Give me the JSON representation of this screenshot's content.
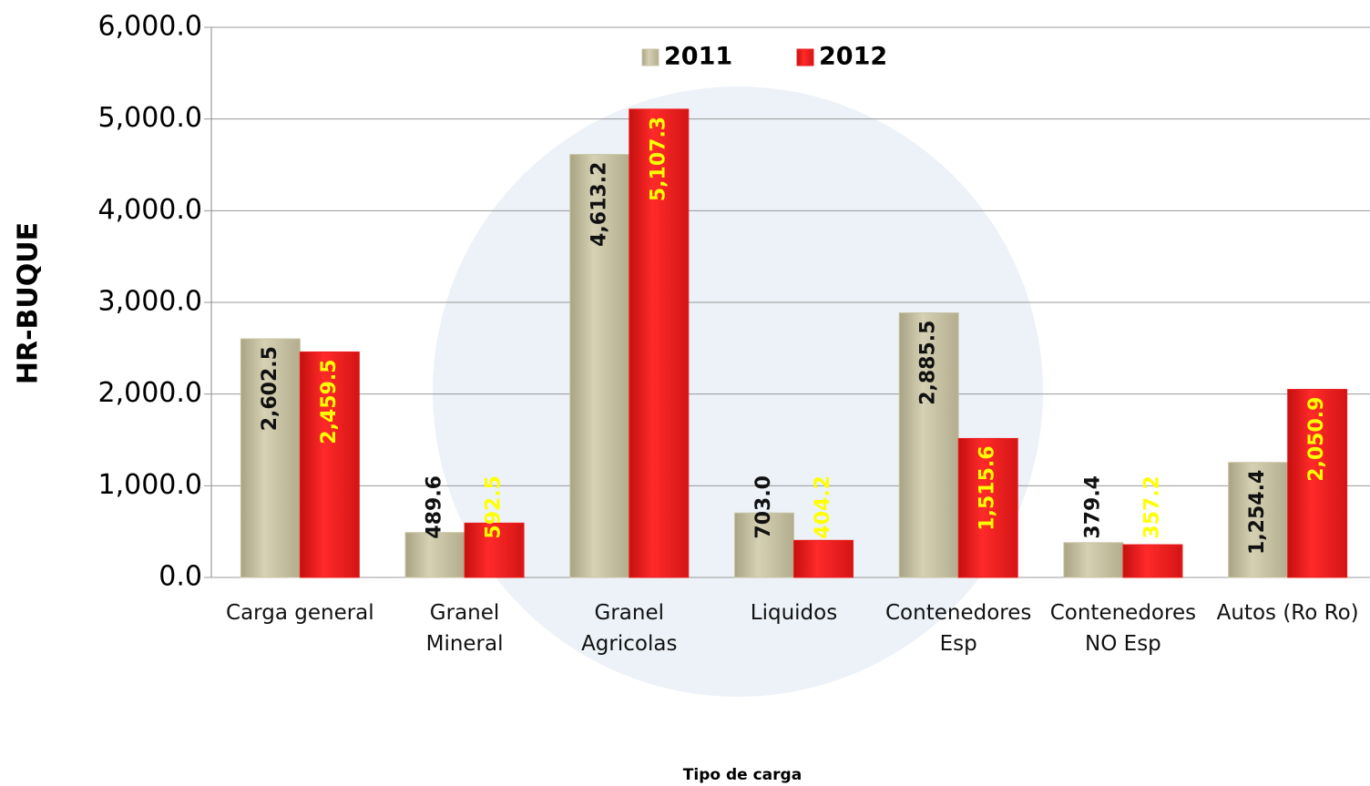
{
  "chart_data": {
    "type": "bar",
    "y_label": "HR-BUQUE",
    "x_label": "Tipo de carga",
    "categories": [
      "Carga general",
      "Granel\nMineral",
      "Granel\nAgricolas",
      "Liquidos",
      "Contenedores\nEsp",
      "Contenedores\nNO Esp",
      "Autos (Ro Ro)"
    ],
    "series": [
      {
        "name": "2011",
        "color": "#c9c4a4",
        "label_color": "#111111",
        "values": [
          2602.5,
          489.6,
          4613.2,
          703.0,
          2885.5,
          379.4,
          1254.4
        ],
        "value_labels": [
          "2,602.5",
          "489.6",
          "4,613.2",
          "703.0",
          "2,885.5",
          "379.4",
          "1,254.4"
        ]
      },
      {
        "name": "2012",
        "color": "#ee1c1c",
        "label_color": "#ffff00",
        "values": [
          2459.5,
          592.5,
          5107.3,
          404.2,
          1515.6,
          357.2,
          2050.9
        ],
        "value_labels": [
          "2,459.5",
          "592.5",
          "5,107.3",
          "404.2",
          "1,515.6",
          "357.2",
          "2,050.9"
        ]
      }
    ],
    "ylim": [
      0,
      6000
    ],
    "yticks": [
      {
        "value": 0,
        "label": "0.0"
      },
      {
        "value": 1000,
        "label": "1,000.0"
      },
      {
        "value": 2000,
        "label": "2,000.0"
      },
      {
        "value": 3000,
        "label": "3,000.0"
      },
      {
        "value": 4000,
        "label": "4,000.0"
      },
      {
        "value": 5000,
        "label": "5,000.0"
      },
      {
        "value": 6000,
        "label": "6,000.0"
      }
    ],
    "grid": true,
    "legend": "top"
  }
}
